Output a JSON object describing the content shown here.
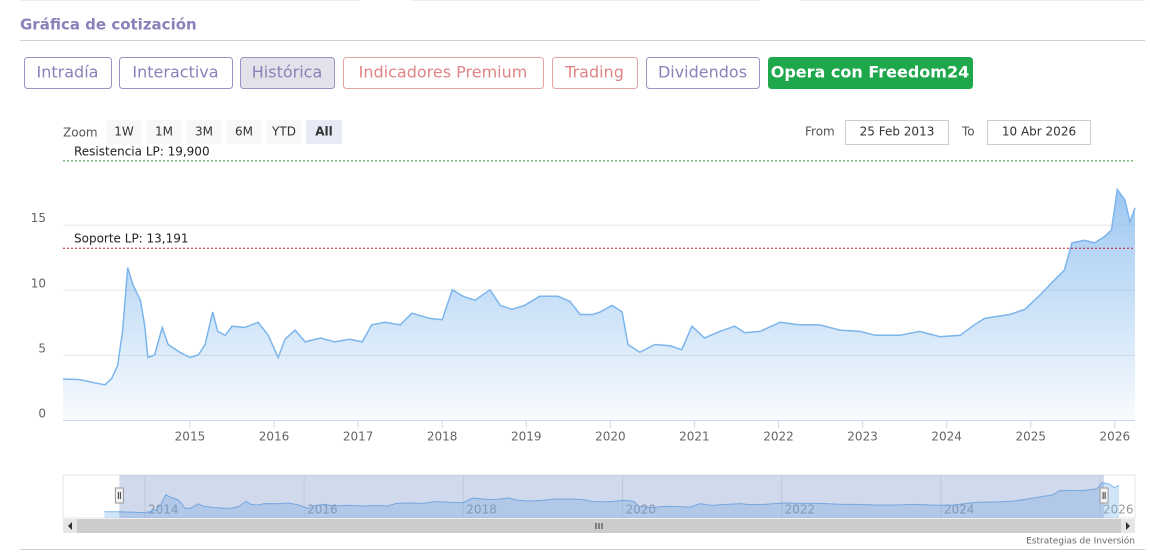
{
  "header": {
    "title": "Gráfica de cotización"
  },
  "tabs": [
    {
      "label": "Intradía",
      "style": "purple"
    },
    {
      "label": "Interactiva",
      "style": "purple"
    },
    {
      "label": "Histórica",
      "style": "active"
    },
    {
      "label": "Indicadores Premium",
      "style": "red"
    },
    {
      "label": "Trading",
      "style": "red"
    },
    {
      "label": "Dividendos",
      "style": "purple"
    },
    {
      "label": "Opera con Freedom24",
      "style": "green"
    }
  ],
  "zoom": {
    "label": "Zoom",
    "buttons": [
      "1W",
      "1M",
      "3M",
      "6M",
      "YTD",
      "All"
    ],
    "selected": "All"
  },
  "range": {
    "from_label": "From",
    "from": "25 Feb 2013",
    "to_label": "To",
    "to": "10 Abr 2026"
  },
  "chart_data": {
    "type": "line",
    "color": "#7cb5ec",
    "grid": true,
    "x": [
      2013.49,
      2013.69,
      2013.87,
      2013.99,
      2014.07,
      2014.14,
      2014.2,
      2014.26,
      2014.32,
      2014.41,
      2014.46,
      2014.5,
      2014.58,
      2014.67,
      2014.74,
      2014.88,
      2015.0,
      2015.1,
      2015.18,
      2015.27,
      2015.33,
      2015.42,
      2015.5,
      2015.65,
      2015.81,
      2015.93,
      2016.05,
      2016.13,
      2016.25,
      2016.37,
      2016.55,
      2016.72,
      2016.9,
      2017.05,
      2017.16,
      2017.32,
      2017.5,
      2017.64,
      2017.85,
      2018.0,
      2018.12,
      2018.25,
      2018.39,
      2018.57,
      2018.69,
      2018.83,
      2018.98,
      2019.16,
      2019.38,
      2019.52,
      2019.64,
      2019.79,
      2019.88,
      2020.02,
      2020.14,
      2020.21,
      2020.35,
      2020.53,
      2020.71,
      2020.85,
      2020.97,
      2021.12,
      2021.3,
      2021.48,
      2021.6,
      2021.78,
      2022.02,
      2022.25,
      2022.49,
      2022.73,
      2022.97,
      2023.15,
      2023.44,
      2023.68,
      2023.92,
      2024.16,
      2024.33,
      2024.45,
      2024.75,
      2024.93,
      2025.11,
      2025.29,
      2025.4,
      2025.49,
      2025.64,
      2025.76,
      2025.88,
      2025.96,
      2026.03,
      2026.12,
      2026.18,
      2026.24
    ],
    "values": [
      3.15,
      3.1,
      2.85,
      2.7,
      3.2,
      4.2,
      6.9,
      11.7,
      10.4,
      9.2,
      7.3,
      4.8,
      5.0,
      7.1,
      5.8,
      5.2,
      4.8,
      5.0,
      5.8,
      8.3,
      6.8,
      6.5,
      7.2,
      7.1,
      7.5,
      6.5,
      4.8,
      6.2,
      6.9,
      6.0,
      6.3,
      6.0,
      6.2,
      6.0,
      7.3,
      7.5,
      7.3,
      8.2,
      7.8,
      7.7,
      10.0,
      9.5,
      9.2,
      10.0,
      8.8,
      8.5,
      8.8,
      9.5,
      9.5,
      9.1,
      8.1,
      8.1,
      8.3,
      8.8,
      8.3,
      5.8,
      5.2,
      5.8,
      5.7,
      5.4,
      7.2,
      6.3,
      6.8,
      7.2,
      6.7,
      6.8,
      7.5,
      7.3,
      7.3,
      6.9,
      6.8,
      6.5,
      6.5,
      6.8,
      6.4,
      6.5,
      7.3,
      7.8,
      8.1,
      8.5,
      9.6,
      10.8,
      11.5,
      13.6,
      13.8,
      13.6,
      14.1,
      14.6,
      17.7,
      16.9,
      15.2,
      16.3
    ],
    "xlim": [
      2013.49,
      2026.24
    ],
    "ylim": [
      0,
      21.5
    ],
    "xticks": [
      2015,
      2016,
      2017,
      2018,
      2019,
      2020,
      2021,
      2022,
      2023,
      2024,
      2025,
      2026
    ],
    "yticks": [
      0,
      5,
      10,
      15
    ],
    "plot_lines": [
      {
        "label": "Resistencia LP: 19,900",
        "value": 19.9,
        "color": "#2e9e2e"
      },
      {
        "label": "Soporte LP: 13,191",
        "value": 13.191,
        "color": "#c0202a"
      }
    ],
    "navigator": {
      "xlim": [
        2012.97,
        2026.44
      ],
      "xticks": [
        2014,
        2016,
        2018,
        2020,
        2022,
        2024,
        2026
      ]
    }
  },
  "footer": {
    "credit": "Estrategias de Inversión"
  }
}
